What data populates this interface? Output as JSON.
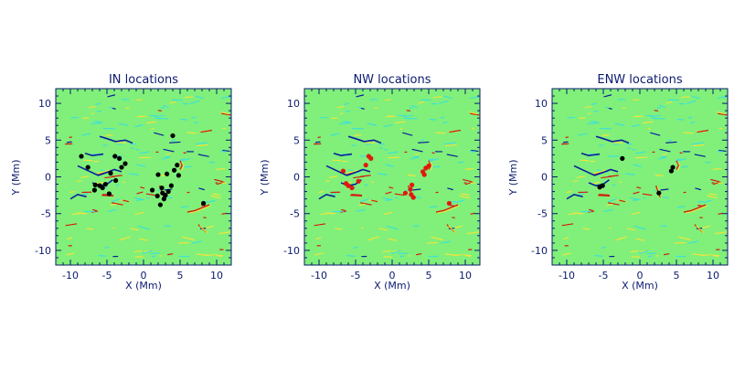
{
  "colors": {
    "background": "#80f07a",
    "axis": "#0b1a6e",
    "negative_strong": "#0a1f9c",
    "negative_weak": "#3fe0d8",
    "positive_weak": "#f2e43a",
    "positive_strong": "#d41b10",
    "marker_in": "#000000",
    "marker_nw": "#e0190f"
  },
  "chart_data": [
    {
      "type": "heatmap",
      "title": "IN locations",
      "xlabel": "X (Mm)",
      "ylabel": "Y (Mm)",
      "xlim": [
        -12,
        12
      ],
      "ylim": [
        -12,
        12
      ],
      "xticks": [
        -10,
        -5,
        0,
        5,
        10
      ],
      "yticks": [
        -10,
        -5,
        0,
        5,
        10
      ],
      "marker_color": "#000000",
      "markers": [
        [
          -8.5,
          2.8
        ],
        [
          -7.6,
          1.3
        ],
        [
          -6.6,
          -1.1
        ],
        [
          -6.0,
          -1.2
        ],
        [
          -5.6,
          -1.5
        ],
        [
          -5.2,
          -1.0
        ],
        [
          -4.5,
          0.5
        ],
        [
          -3.9,
          2.8
        ],
        [
          -3.3,
          2.5
        ],
        [
          -3.0,
          1.3
        ],
        [
          -2.5,
          1.8
        ],
        [
          -4.7,
          -2.3
        ],
        [
          -6.7,
          -1.8
        ],
        [
          -3.8,
          -0.5
        ],
        [
          2.0,
          0.3
        ],
        [
          3.2,
          0.4
        ],
        [
          4.2,
          0.9
        ],
        [
          4.6,
          1.6
        ],
        [
          2.5,
          -1.5
        ],
        [
          2.6,
          -2.2
        ],
        [
          3.0,
          -2.5
        ],
        [
          2.8,
          -3.0
        ],
        [
          1.9,
          -2.6
        ],
        [
          2.3,
          -3.8
        ],
        [
          3.4,
          -2.0
        ],
        [
          4.0,
          5.6
        ],
        [
          8.2,
          -3.6
        ],
        [
          4.8,
          0.2
        ],
        [
          1.2,
          -1.8
        ],
        [
          3.8,
          -1.2
        ]
      ]
    },
    {
      "type": "heatmap",
      "title": "NW locations",
      "xlabel": "X (Mm)",
      "ylabel": "Y (Mm)",
      "xlim": [
        -12,
        12
      ],
      "ylim": [
        -12,
        12
      ],
      "xticks": [
        -10,
        -5,
        0,
        5,
        10
      ],
      "yticks": [
        -10,
        -5,
        0,
        5,
        10
      ],
      "marker_color": "#e0190f",
      "markers": [
        [
          -6.0,
          -1.2
        ],
        [
          -5.5,
          -1.5
        ],
        [
          -6.3,
          -0.9
        ],
        [
          -4.6,
          -0.6
        ],
        [
          -3.2,
          2.8
        ],
        [
          -2.9,
          2.5
        ],
        [
          2.5,
          -1.7
        ],
        [
          2.6,
          -2.4
        ],
        [
          2.9,
          -2.8
        ],
        [
          2.7,
          -1.1
        ],
        [
          4.2,
          0.7
        ],
        [
          4.6,
          1.2
        ],
        [
          5.0,
          1.5
        ],
        [
          4.4,
          0.3
        ],
        [
          7.8,
          -3.6
        ],
        [
          -6.7,
          0.8
        ],
        [
          1.8,
          -2.2
        ],
        [
          -3.6,
          1.6
        ]
      ]
    },
    {
      "type": "heatmap",
      "title": "ENW locations",
      "xlabel": "X (Mm)",
      "ylabel": "Y (Mm)",
      "xlim": [
        -12,
        12
      ],
      "ylim": [
        -12,
        12
      ],
      "xticks": [
        -10,
        -5,
        0,
        5,
        10
      ],
      "yticks": [
        -10,
        -5,
        0,
        5,
        10
      ],
      "marker_color": "#000000",
      "markers": [
        [
          -5.5,
          -1.4
        ],
        [
          -5.1,
          -1.2
        ],
        [
          -2.4,
          2.5
        ],
        [
          2.6,
          -2.2
        ],
        [
          4.3,
          0.8
        ],
        [
          4.5,
          1.3
        ]
      ]
    }
  ]
}
